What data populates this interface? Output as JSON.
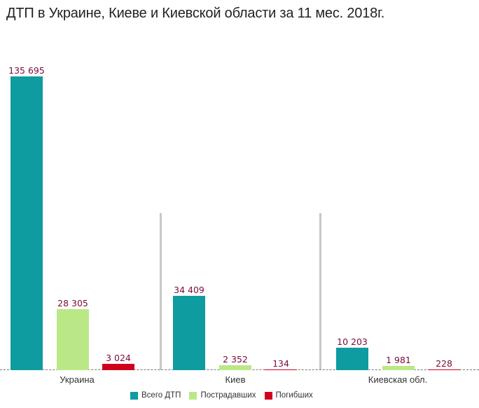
{
  "title": "ДТП в Украине, Киеве и Киевской области за 11 мес. 2018г.",
  "colors": {
    "total": "#0f9ca0",
    "injured": "#bbe887",
    "killed": "#d0021b",
    "value_label": "#7a0a3a",
    "separator": "#c8c8c8"
  },
  "chart_data": {
    "type": "bar",
    "title": "ДТП в Украине, Киеве и Киевской области за 11 мес. 2018г.",
    "categories": [
      "Украина",
      "Киев",
      "Киевская обл."
    ],
    "series": [
      {
        "name": "Всего ДТП",
        "values": [
          135695,
          34409,
          10203
        ]
      },
      {
        "name": "Пострадавших",
        "values": [
          28305,
          2352,
          1981
        ]
      },
      {
        "name": "Погибших",
        "values": [
          3024,
          134,
          228
        ]
      }
    ],
    "value_labels": [
      [
        "135 695",
        "28 305",
        "3 024"
      ],
      [
        "34 409",
        "2 352",
        "134"
      ],
      [
        "10 203",
        "1 981",
        "228"
      ]
    ],
    "xlabel": "",
    "ylabel": "",
    "grid": false,
    "legend_position": "bottom",
    "ylim": [
      0,
      135695
    ]
  },
  "groups": [
    {
      "label": "Украина",
      "bars": [
        {
          "label": "135 695",
          "value": 135695
        },
        {
          "label": "28 305",
          "value": 28305
        },
        {
          "label": "3 024",
          "value": 3024
        }
      ]
    },
    {
      "label": "Киев",
      "bars": [
        {
          "label": "34 409",
          "value": 34409
        },
        {
          "label": "2 352",
          "value": 2352
        },
        {
          "label": "134",
          "value": 134
        }
      ]
    },
    {
      "label": "Киевская обл.",
      "bars": [
        {
          "label": "10 203",
          "value": 10203
        },
        {
          "label": "1 981",
          "value": 1981
        },
        {
          "label": "228",
          "value": 228
        }
      ]
    }
  ],
  "legend": [
    {
      "label": "Всего ДТП",
      "color": "#0f9ca0"
    },
    {
      "label": "Пострадавших",
      "color": "#bbe887"
    },
    {
      "label": "Погибших",
      "color": "#d0021b"
    }
  ]
}
